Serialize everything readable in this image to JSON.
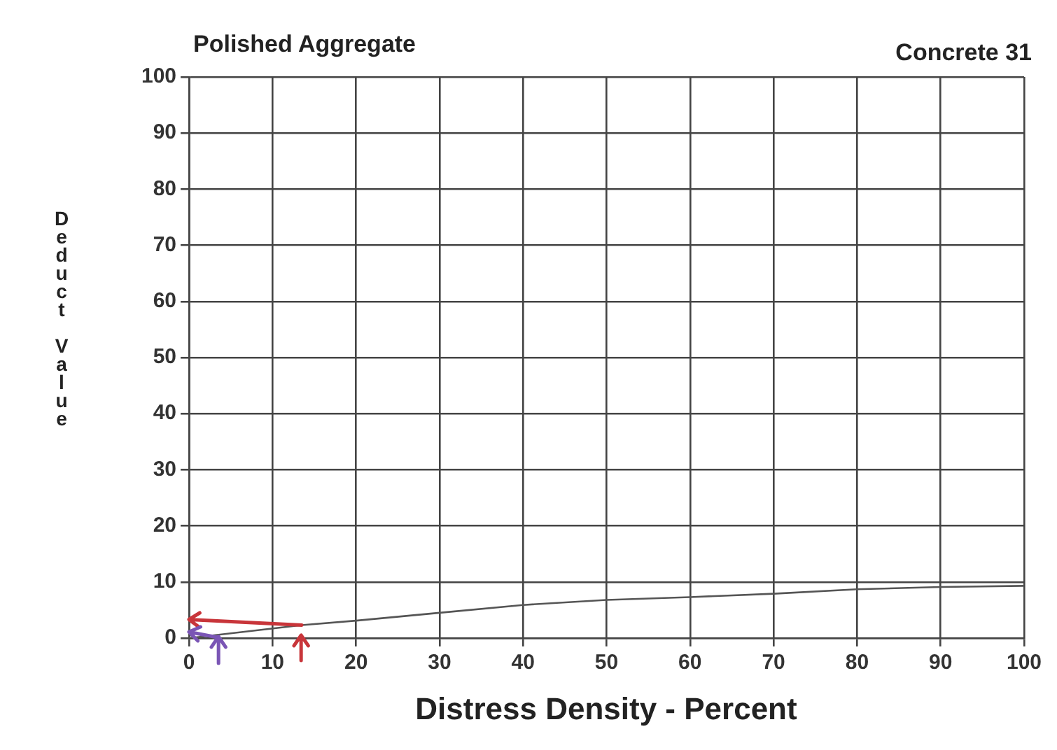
{
  "chart_data": {
    "type": "line",
    "title": "Polished Aggregate",
    "subtitle": "Concrete 31",
    "xlabel": "Distress Density - Percent",
    "ylabel": "Deduct Value",
    "x": [
      0,
      3,
      13.5,
      20,
      30,
      40,
      50,
      60,
      70,
      80,
      90,
      100
    ],
    "series": [
      {
        "color": "#555555",
        "values": [
          0,
          0.5,
          2.3,
          3.1,
          4.5,
          5.9,
          6.8,
          7.3,
          7.9,
          8.7,
          9.1,
          9.3
        ]
      }
    ],
    "xlim": [
      0,
      100
    ],
    "xticks": [
      0,
      10,
      20,
      30,
      40,
      50,
      60,
      70,
      80,
      90,
      100
    ],
    "ylim": [
      0,
      100
    ],
    "yticks": [
      0,
      10,
      20,
      30,
      40,
      50,
      60,
      70,
      80,
      90,
      100
    ],
    "grid": true,
    "legend": false,
    "marker": "none",
    "line_style": "solid"
  }
}
